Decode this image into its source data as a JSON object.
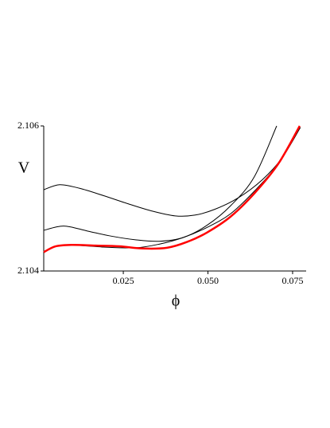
{
  "chart_data": {
    "type": "line",
    "xlabel": "ϕ",
    "ylabel": "V",
    "xlim": [
      0.0015,
      0.079
    ],
    "ylim": [
      2.104,
      2.106
    ],
    "xticks": [
      0.025,
      {
        "value": 0.05,
        "label": "0.050"
      },
      0.075
    ],
    "yticks": [
      2.104,
      2.106
    ],
    "series": [
      {
        "color": "#000000",
        "line_width": 1,
        "x": [
          0.0015,
          0.0062,
          0.0121,
          0.0191,
          0.0262,
          0.0332,
          0.0403,
          0.0461,
          0.052,
          0.059,
          0.0661,
          0.0719,
          0.0773
        ],
        "values": [
          2.10512,
          2.10519,
          2.10514,
          2.10504,
          2.10493,
          2.10483,
          2.10476,
          2.10477,
          2.10485,
          2.10501,
          2.10526,
          2.10556,
          2.10598
        ]
      },
      {
        "color": "#000000",
        "line_width": 1,
        "x": [
          0.0015,
          0.0074,
          0.0145,
          0.0215,
          0.0286,
          0.0356,
          0.0426,
          0.0497,
          0.0567,
          0.0637,
          0.0703
        ],
        "values": [
          2.10456,
          2.10462,
          2.10455,
          2.10448,
          2.10443,
          2.10441,
          2.10446,
          2.10463,
          2.1049,
          2.1053,
          2.106
        ]
      },
      {
        "color": "#000000",
        "line_width": 1,
        "x": [
          0.0097,
          0.0191,
          0.0286,
          0.0356,
          0.0426,
          0.0497,
          0.0567,
          0.0637,
          0.0708,
          0.0771
        ],
        "values": [
          2.10436,
          2.10433,
          2.10432,
          2.10437,
          2.10446,
          2.1046,
          2.10479,
          2.1051,
          2.10548,
          2.10598
        ]
      },
      {
        "color": "#ff0000",
        "line_width": 2.5,
        "x": [
          0.0015,
          0.005,
          0.0097,
          0.0168,
          0.0238,
          0.0309,
          0.0379,
          0.0438,
          0.0497,
          0.0567,
          0.0637,
          0.0708,
          0.0771
        ],
        "values": [
          2.10426,
          2.10434,
          2.10436,
          2.10435,
          2.10434,
          2.10431,
          2.10432,
          2.1044,
          2.10453,
          2.10475,
          2.10507,
          2.10548,
          2.106
        ]
      }
    ]
  }
}
